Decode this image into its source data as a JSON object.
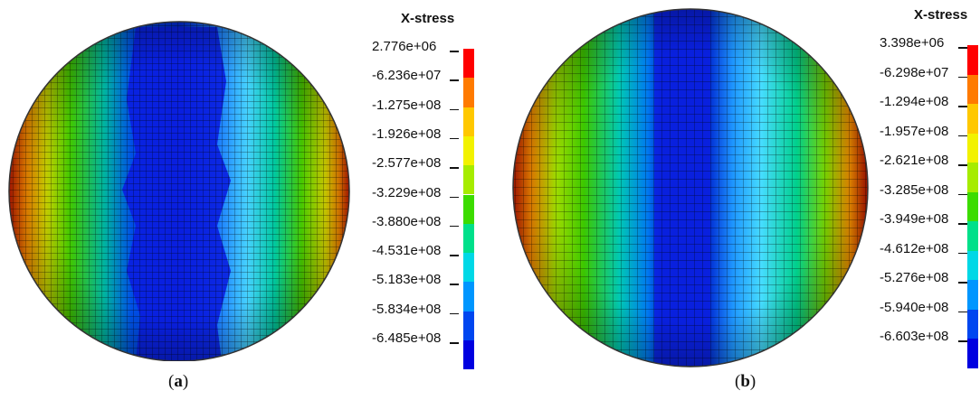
{
  "panels": [
    {
      "legend_title": "X-stress",
      "ticks": [
        "2.776e+06",
        "-6.236e+07",
        "-1.275e+08",
        "-1.926e+08",
        "-2.577e+08",
        "-3.229e+08",
        "-3.880e+08",
        "-4.531e+08",
        "-5.183e+08",
        "-5.834e+08",
        "-6.485e+08"
      ],
      "caption_letter": "a"
    },
    {
      "legend_title": "X-stress",
      "ticks": [
        "3.398e+06",
        "-6.298e+07",
        "-1.294e+08",
        "-1.957e+08",
        "-2.621e+08",
        "-3.285e+08",
        "-3.949e+08",
        "-4.612e+08",
        "-5.276e+08",
        "-5.940e+08",
        "-6.603e+08"
      ],
      "caption_letter": "b"
    }
  ],
  "colorbar_colors": [
    "#ff0000",
    "#ff7a00",
    "#ffc800",
    "#f2f200",
    "#a6ec00",
    "#3cdc00",
    "#00e08a",
    "#00d8e6",
    "#0096ff",
    "#0046f0",
    "#0000e0"
  ]
}
